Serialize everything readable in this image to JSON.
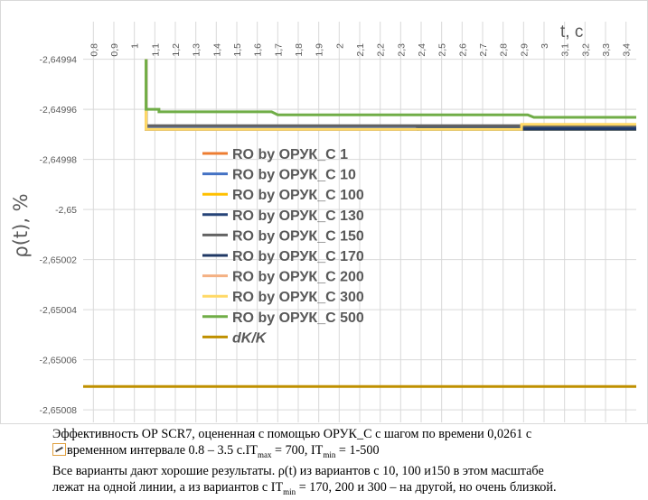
{
  "chart_data": {
    "type": "line",
    "xlabel": "t, c",
    "ylabel": "ρ(t), %",
    "x_ticks": [
      "0,8",
      "0,9",
      "1",
      "1,1",
      "1,2",
      "1,3",
      "1,4",
      "1,5",
      "1,6",
      "1,7",
      "1,8",
      "1,9",
      "2",
      "2,1",
      "2,2",
      "2,3",
      "2,4",
      "2,5",
      "2,6",
      "2,7",
      "2,8",
      "2,9",
      "3",
      "3,1",
      "3,2",
      "3,3",
      "3,4"
    ],
    "y_ticks": [
      "-2,64994",
      "-2,64996",
      "-2,64998",
      "-2,65",
      "-2,65002",
      "-2,65004",
      "-2,65006",
      "-2,65008"
    ],
    "xlim": [
      0.75,
      3.45
    ],
    "ylim": [
      -2.650085,
      -2.649925
    ],
    "grid": true,
    "legend_position": "center-left",
    "series": [
      {
        "name": "RO by ОРУК_С 1",
        "color": "#ED7D31",
        "points": [
          [
            1.057,
            -2.64994
          ],
          [
            1.057,
            -2.649967
          ],
          [
            3.45,
            -2.649967
          ]
        ]
      },
      {
        "name": "RO by ОРУК_С 10",
        "color": "#4472C4",
        "points": [
          [
            1.057,
            -2.64994
          ],
          [
            1.057,
            -2.649967
          ],
          [
            3.45,
            -2.649967
          ]
        ]
      },
      {
        "name": "RO by ОРУК_С 100",
        "color": "#FFC000",
        "points": [
          [
            1.057,
            -2.64994
          ],
          [
            1.057,
            -2.649968
          ],
          [
            3.45,
            -2.649968
          ]
        ]
      },
      {
        "name": "RO by ОРУК_С 130",
        "color": "#264478",
        "points": [
          [
            1.057,
            -2.64994
          ],
          [
            1.057,
            -2.649968
          ],
          [
            2.38,
            -2.649968
          ],
          [
            2.38,
            -2.649967
          ],
          [
            3.45,
            -2.649967
          ]
        ]
      },
      {
        "name": "RO by ОРУК_С 150",
        "color": "#636363",
        "points": [
          [
            1.057,
            -2.64994
          ],
          [
            1.057,
            -2.6499665
          ],
          [
            2.38,
            -2.6499665
          ],
          [
            3.45,
            -2.6499665
          ]
        ]
      },
      {
        "name": "RO by ОРУК_С 170",
        "color": "#1F3864",
        "points": [
          [
            1.057,
            -2.64994
          ],
          [
            1.057,
            -2.649968
          ],
          [
            2.38,
            -2.649968
          ],
          [
            3.45,
            -2.649968
          ]
        ]
      },
      {
        "name": "RO by ОРУК_С 200",
        "color": "#F4B183",
        "points": [
          [
            1.057,
            -2.64994
          ],
          [
            1.057,
            -2.649968
          ],
          [
            1.57,
            -2.649968
          ],
          [
            2.38,
            -2.649968
          ]
        ]
      },
      {
        "name": "RO by ОРУК_С 300",
        "color": "#FFD966",
        "points": [
          [
            1.057,
            -2.64994
          ],
          [
            1.057,
            -2.649968
          ],
          [
            2.89,
            -2.649968
          ],
          [
            2.89,
            -2.649966
          ],
          [
            3.45,
            -2.649966
          ]
        ]
      },
      {
        "name": "RO by ОРУК_С 500",
        "color": "#70AD47",
        "points": [
          [
            1.057,
            -2.64994
          ],
          [
            1.057,
            -2.64996
          ],
          [
            1.12,
            -2.64996
          ],
          [
            1.12,
            -2.649961
          ],
          [
            1.67,
            -2.649961
          ],
          [
            1.7,
            -2.6499622
          ],
          [
            2.92,
            -2.6499622
          ],
          [
            2.95,
            -2.6499632
          ],
          [
            3.45,
            -2.6499632
          ]
        ]
      },
      {
        "name": "dK/K",
        "color": "#BF9000",
        "italic": true,
        "points": [
          [
            0.75,
            -2.6500707
          ],
          [
            3.45,
            -2.6500707
          ]
        ]
      }
    ]
  },
  "caption": {
    "line1": "Эффективность ОР SCR7, оцененная с помощью ОРУК_С с шагом по времени 0,0261 с",
    "line2_a": "временном интервале 0.8 – 3.5 с.IT",
    "line2_sub1": "max",
    "line2_b": " = 700, IT",
    "line2_sub2": "min",
    "line2_c": " = 1-500",
    "line3": "Все варианты дают хорошие результаты. ρ(t) из вариантов с 10, 100 и150 в этом масштабе",
    "line4_a": "лежат на одной линии, а из вариантов с IT",
    "line4_sub": "min",
    "line4_b": " = 170, 200 и 300 – на другой, но очень близкой."
  }
}
